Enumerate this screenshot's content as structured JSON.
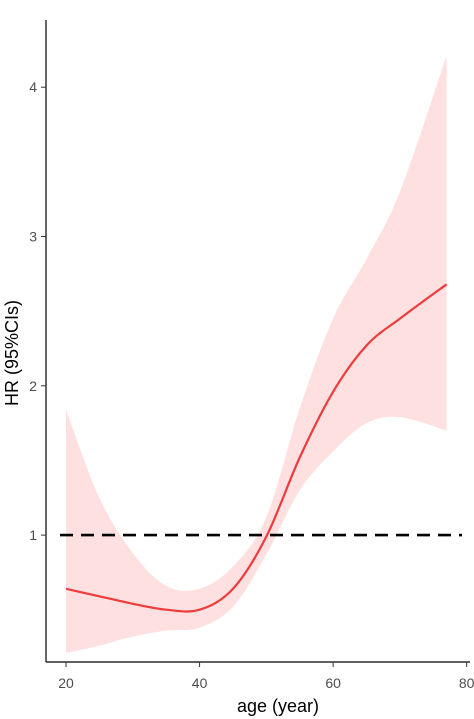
{
  "chart_data": {
    "type": "line",
    "title": "",
    "xlabel": "age (year)",
    "ylabel": "HR (95%CIs)",
    "xlim": [
      17,
      80.5
    ],
    "ylim": [
      0.15,
      4.45
    ],
    "x_ticks": [
      20,
      40,
      60,
      80
    ],
    "y_ticks": [
      1,
      2,
      3,
      4
    ],
    "grid": false,
    "legend": "none",
    "reference_line": {
      "y": 1,
      "style": "dashed",
      "color": "#000000"
    },
    "series": [
      {
        "color": "#ee3b3b",
        "band_color": "#ffe0e0",
        "points": [
          {
            "x": 20,
            "y": 0.64,
            "lower": 0.21,
            "upper": 1.84
          },
          {
            "x": 25,
            "y": 0.59,
            "lower": 0.26,
            "upper": 1.25
          },
          {
            "x": 30,
            "y": 0.54,
            "lower": 0.32,
            "upper": 0.88
          },
          {
            "x": 35,
            "y": 0.5,
            "lower": 0.36,
            "upper": 0.66
          },
          {
            "x": 40,
            "y": 0.5,
            "lower": 0.38,
            "upper": 0.64
          },
          {
            "x": 45,
            "y": 0.64,
            "lower": 0.52,
            "upper": 0.79
          },
          {
            "x": 50,
            "y": 0.99,
            "lower": 0.87,
            "upper": 1.12
          },
          {
            "x": 55,
            "y": 1.52,
            "lower": 1.3,
            "upper": 1.85
          },
          {
            "x": 60,
            "y": 1.96,
            "lower": 1.56,
            "upper": 2.45
          },
          {
            "x": 65,
            "y": 2.27,
            "lower": 1.75,
            "upper": 2.85
          },
          {
            "x": 70,
            "y": 2.45,
            "lower": 1.79,
            "upper": 3.3
          },
          {
            "x": 77,
            "y": 2.68,
            "lower": 1.7,
            "upper": 4.21
          }
        ]
      }
    ]
  }
}
